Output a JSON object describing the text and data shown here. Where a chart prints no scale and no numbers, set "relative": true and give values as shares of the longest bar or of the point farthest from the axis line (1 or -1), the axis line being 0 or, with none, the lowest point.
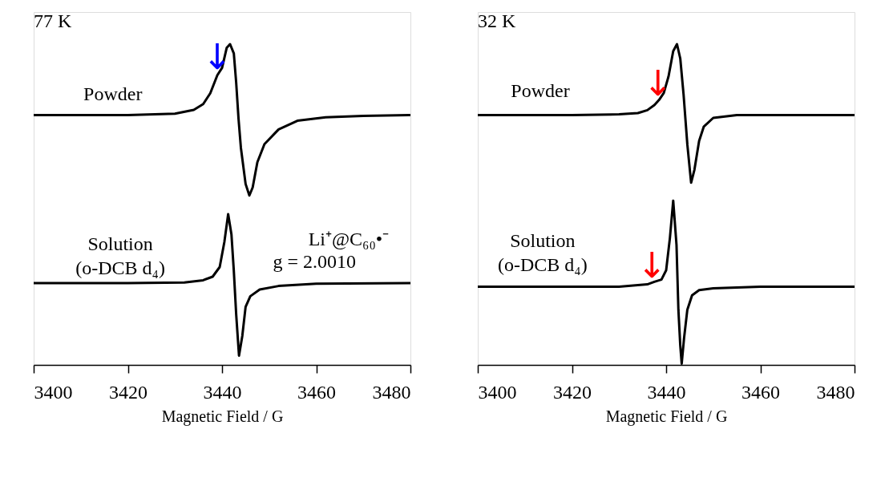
{
  "chart_data": [
    {
      "type": "line",
      "relative": true,
      "xlabel": "Magnetic Field / G",
      "xlim": [
        3400,
        3480
      ],
      "xticks": [
        3400,
        3420,
        3440,
        3460,
        3480
      ],
      "grid": false,
      "marker": "none",
      "line_style": "solid",
      "annotations": [
        "77 K",
        "Powder",
        "Solution\n(o-DCB d₄)",
        "Li⁺@C₆₀•⁻",
        "g = 2.0010",
        {
          "text": "↓",
          "x": 3439,
          "y": 0.914
        }
      ],
      "series": [
        {
          "color": "#000000",
          "x": [
            3400,
            3410,
            3420,
            3430,
            3434,
            3436,
            3437.5,
            3439,
            3440,
            3441,
            3441.7,
            3442.5,
            3443,
            3443.5,
            3444,
            3445,
            3445.8,
            3446.5,
            3447.5,
            3449,
            3452,
            3456,
            3462,
            3470,
            3480
          ],
          "values": [
            0.779,
            0.779,
            0.779,
            0.783,
            0.795,
            0.813,
            0.847,
            0.903,
            0.926,
            0.989,
            1.0,
            0.971,
            0.88,
            0.767,
            0.677,
            0.564,
            0.528,
            0.553,
            0.632,
            0.688,
            0.734,
            0.761,
            0.772,
            0.776,
            0.779
          ]
        },
        {
          "color": "#000000",
          "x": [
            3400,
            3420,
            3432,
            3436,
            3438,
            3439.5,
            3440.5,
            3441.3,
            3442,
            3442.5,
            3443,
            3443.6,
            3444.3,
            3445,
            3446,
            3448,
            3452,
            3460,
            3480
          ],
          "values": [
            0.255,
            0.255,
            0.257,
            0.264,
            0.275,
            0.305,
            0.384,
            0.47,
            0.406,
            0.293,
            0.158,
            0.029,
            0.09,
            0.181,
            0.214,
            0.235,
            0.246,
            0.253,
            0.255
          ]
        }
      ]
    },
    {
      "type": "line",
      "relative": true,
      "xlabel": "Magnetic Field / G",
      "xlim": [
        3400,
        3480
      ],
      "xticks": [
        3400,
        3420,
        3440,
        3460,
        3480
      ],
      "grid": false,
      "marker": "none",
      "line_style": "solid",
      "annotations": [
        "32 K",
        "Powder",
        "Solution\n(o-DCB d₄)",
        {
          "text": "↓",
          "x": 3438.3,
          "y": 0.832
        },
        {
          "text": "↓",
          "x": 3437,
          "y": 0.266
        }
      ],
      "series": [
        {
          "color": "#000000",
          "x": [
            3400,
            3420,
            3430,
            3434,
            3436,
            3437.5,
            3438.5,
            3439.5,
            3440.5,
            3441.5,
            3442.3,
            3443,
            3443.7,
            3444.5,
            3445.3,
            3446,
            3447,
            3448,
            3450,
            3455,
            3480
          ],
          "values": [
            0.779,
            0.779,
            0.781,
            0.785,
            0.794,
            0.81,
            0.826,
            0.848,
            0.899,
            0.978,
            1.0,
            0.955,
            0.843,
            0.687,
            0.568,
            0.608,
            0.698,
            0.743,
            0.77,
            0.779,
            0.779
          ]
        },
        {
          "color": "#000000",
          "x": [
            3400,
            3430,
            3436,
            3437.5,
            3439,
            3440,
            3440.8,
            3441.5,
            3442.2,
            3442.6,
            3443,
            3443.3,
            3443.8,
            3444.5,
            3445.5,
            3447,
            3450,
            3460,
            3480
          ],
          "values": [
            0.244,
            0.244,
            0.251,
            0.259,
            0.266,
            0.295,
            0.396,
            0.512,
            0.374,
            0.172,
            0.06,
            0.004,
            0.083,
            0.172,
            0.217,
            0.233,
            0.239,
            0.244,
            0.244
          ]
        }
      ]
    }
  ]
}
